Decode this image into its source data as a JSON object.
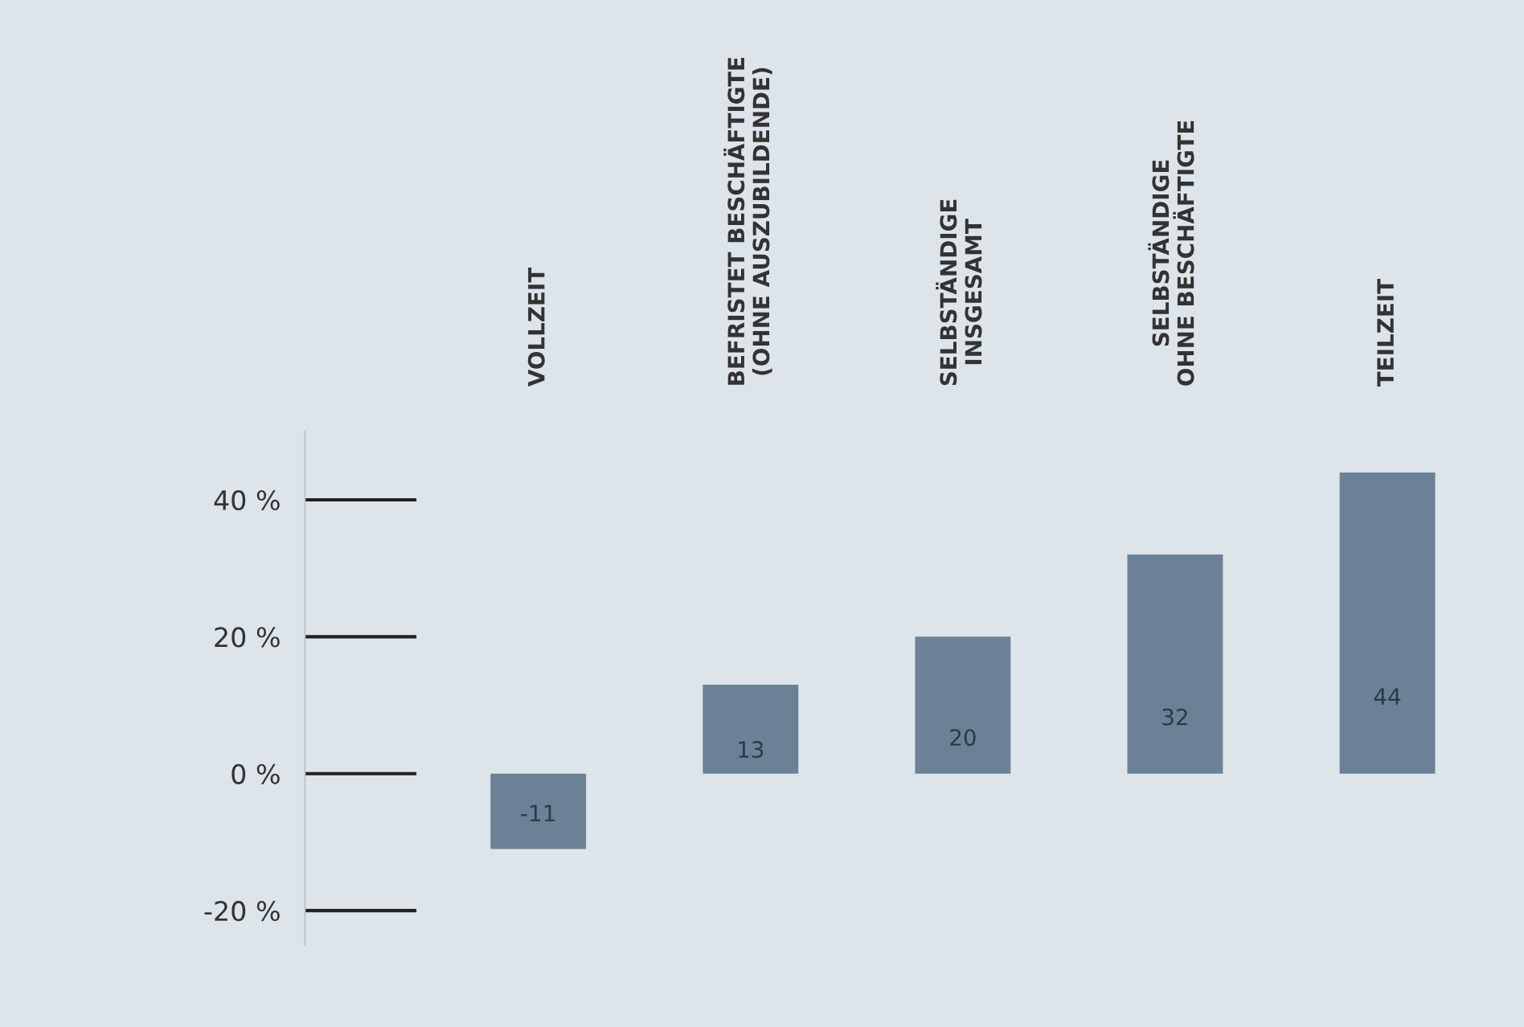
{
  "chart_data": {
    "type": "bar",
    "categories": [
      "VOLLZEIT",
      "BEFRISTET BESCHÄFTIGTE\n(OHNE AUSZUBILDENDE)",
      "SELBSTÄNDIGE\nINSGESAMT",
      "SELBSTÄNDIGE\nOHNE BESCHÄFTIGTE",
      "TEILZEIT"
    ],
    "values": [
      -11,
      13,
      20,
      32,
      44
    ],
    "color": "#6b8296",
    "data_labels": true,
    "ylim": [
      -25,
      50
    ],
    "yticks": [
      {
        "value": -20,
        "label": "-20 %"
      },
      {
        "value": 0,
        "label": "0 %"
      },
      {
        "value": 20,
        "label": "20 %"
      },
      {
        "value": 40,
        "label": "40 %"
      }
    ],
    "grid": false
  }
}
